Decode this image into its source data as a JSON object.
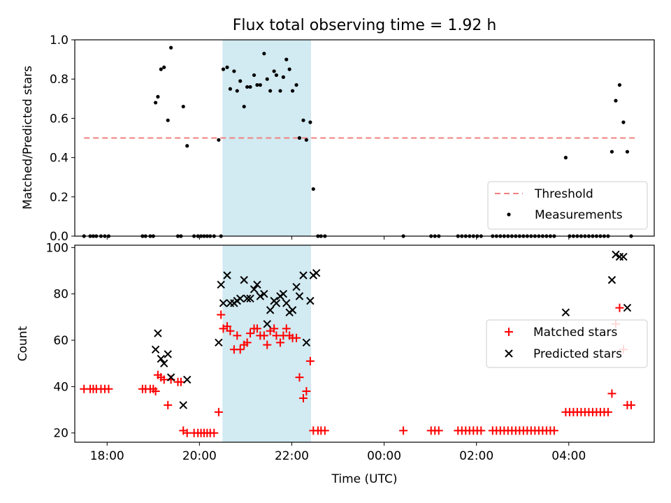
{
  "chart_data": [
    {
      "type": "scatter",
      "title": "Flux total observing time = 1.92 h",
      "xlabel": "",
      "ylabel": "Matched/Predicted stars",
      "xlim": [
        "17:18",
        "05:51"
      ],
      "ylim": [
        0,
        1.0
      ],
      "yticks": [
        "0.0",
        "0.2",
        "0.4",
        "0.6",
        "0.8",
        "1.0"
      ],
      "xticks_shown": false,
      "highlight_span": {
        "start": "20:30",
        "end": "22:25",
        "color": "#add8e6"
      },
      "threshold": {
        "name": "Threshold",
        "value": 0.5,
        "x_start": "17:30",
        "x_end": "05:30",
        "color": "#f08080",
        "style": "dashed"
      },
      "legend": {
        "position": "lower-right",
        "entries": [
          "Threshold",
          "Measurements"
        ]
      },
      "series": [
        {
          "name": "Measurements",
          "color": "#000000",
          "marker": "dot",
          "points": [
            [
              "17:30",
              0
            ],
            [
              "17:38",
              0
            ],
            [
              "17:42",
              0
            ],
            [
              "17:46",
              0
            ],
            [
              "17:52",
              0
            ],
            [
              "17:57",
              0
            ],
            [
              "18:02",
              0
            ],
            [
              "18:46",
              0
            ],
            [
              "18:50",
              0
            ],
            [
              "18:56",
              0
            ],
            [
              "19:00",
              0
            ],
            [
              "19:03",
              0.68
            ],
            [
              "19:06",
              0.71
            ],
            [
              "19:10",
              0.85
            ],
            [
              "19:14",
              0.86
            ],
            [
              "19:19",
              0.59
            ],
            [
              "19:23",
              0.96
            ],
            [
              "19:32",
              0
            ],
            [
              "19:36",
              0
            ],
            [
              "19:39",
              0.66
            ],
            [
              "19:44",
              0.46
            ],
            [
              "19:53",
              0
            ],
            [
              "19:58",
              0
            ],
            [
              "20:02",
              0
            ],
            [
              "20:06",
              0
            ],
            [
              "20:10",
              0
            ],
            [
              "20:14",
              0
            ],
            [
              "20:19",
              0
            ],
            [
              "20:25",
              0.49
            ],
            [
              "20:28",
              0
            ],
            [
              "20:31",
              0.85
            ],
            [
              "20:36",
              0.86
            ],
            [
              "20:40",
              0.75
            ],
            [
              "20:45",
              0.84
            ],
            [
              "20:49",
              0.74
            ],
            [
              "20:53",
              0.79
            ],
            [
              "20:58",
              0.66
            ],
            [
              "21:02",
              0.76
            ],
            [
              "21:06",
              0.76
            ],
            [
              "21:11",
              0.82
            ],
            [
              "21:15",
              0.77
            ],
            [
              "21:19",
              0.77
            ],
            [
              "21:24",
              0.93
            ],
            [
              "21:28",
              0.8
            ],
            [
              "21:32",
              0.74
            ],
            [
              "21:37",
              0.84
            ],
            [
              "21:40",
              0.82
            ],
            [
              "21:45",
              0.74
            ],
            [
              "21:49",
              0.81
            ],
            [
              "21:53",
              0.9
            ],
            [
              "21:57",
              0.85
            ],
            [
              "22:01",
              0.74
            ],
            [
              "22:06",
              0.77
            ],
            [
              "22:10",
              0.5
            ],
            [
              "22:15",
              0.59
            ],
            [
              "22:19",
              0.49
            ],
            [
              "22:24",
              0.58
            ],
            [
              "22:28",
              0.24
            ],
            [
              "22:34",
              0
            ],
            [
              "22:38",
              0
            ],
            [
              "22:43",
              0
            ],
            [
              "00:25",
              0
            ],
            [
              "01:01",
              0
            ],
            [
              "01:06",
              0
            ],
            [
              "01:11",
              0
            ],
            [
              "01:36",
              0
            ],
            [
              "01:41",
              0
            ],
            [
              "01:46",
              0
            ],
            [
              "01:51",
              0
            ],
            [
              "01:56",
              0
            ],
            [
              "02:01",
              0
            ],
            [
              "02:06",
              0
            ],
            [
              "02:21",
              0
            ],
            [
              "02:26",
              0
            ],
            [
              "02:31",
              0
            ],
            [
              "02:36",
              0
            ],
            [
              "02:41",
              0
            ],
            [
              "02:46",
              0
            ],
            [
              "02:51",
              0
            ],
            [
              "02:56",
              0
            ],
            [
              "03:01",
              0
            ],
            [
              "03:06",
              0
            ],
            [
              "03:11",
              0
            ],
            [
              "03:16",
              0
            ],
            [
              "03:21",
              0
            ],
            [
              "03:26",
              0
            ],
            [
              "03:31",
              0
            ],
            [
              "03:36",
              0
            ],
            [
              "03:41",
              0
            ],
            [
              "03:56",
              0.4
            ],
            [
              "04:01",
              0
            ],
            [
              "04:06",
              0
            ],
            [
              "04:11",
              0
            ],
            [
              "04:16",
              0
            ],
            [
              "04:21",
              0
            ],
            [
              "04:26",
              0
            ],
            [
              "04:31",
              0
            ],
            [
              "04:36",
              0
            ],
            [
              "04:41",
              0
            ],
            [
              "04:46",
              0
            ],
            [
              "04:51",
              0
            ],
            [
              "04:56",
              0.43
            ],
            [
              "05:01",
              0.69
            ],
            [
              "05:06",
              0.77
            ],
            [
              "05:11",
              0.58
            ],
            [
              "05:16",
              0.43
            ],
            [
              "05:21",
              0
            ]
          ]
        }
      ]
    },
    {
      "type": "scatter",
      "title": "",
      "xlabel": "Time (UTC)",
      "ylabel": "Count",
      "xlim": [
        "17:18",
        "05:51"
      ],
      "ylim": [
        16,
        101
      ],
      "yticks": [
        "20",
        "40",
        "60",
        "80",
        "100"
      ],
      "xticks": [
        "18:00",
        "20:00",
        "22:00",
        "00:00",
        "02:00",
        "04:00"
      ],
      "highlight_span": {
        "start": "20:30",
        "end": "22:25",
        "color": "#add8e6"
      },
      "legend": {
        "position": "center-right",
        "entries": [
          "Matched stars",
          "Predicted stars"
        ]
      },
      "series": [
        {
          "name": "Matched stars",
          "color": "#ff0000",
          "marker": "plus",
          "points": [
            [
              "17:30",
              39
            ],
            [
              "17:38",
              39
            ],
            [
              "17:42",
              39
            ],
            [
              "17:46",
              39
            ],
            [
              "17:52",
              39
            ],
            [
              "17:57",
              39
            ],
            [
              "18:02",
              39
            ],
            [
              "18:46",
              39
            ],
            [
              "18:50",
              39
            ],
            [
              "18:56",
              39
            ],
            [
              "19:00",
              39
            ],
            [
              "19:03",
              38
            ],
            [
              "19:06",
              45
            ],
            [
              "19:10",
              44
            ],
            [
              "19:14",
              43
            ],
            [
              "19:19",
              32
            ],
            [
              "19:23",
              43
            ],
            [
              "19:32",
              42
            ],
            [
              "19:36",
              42
            ],
            [
              "19:39",
              21
            ],
            [
              "19:44",
              20
            ],
            [
              "19:53",
              20
            ],
            [
              "19:58",
              20
            ],
            [
              "20:02",
              20
            ],
            [
              "20:06",
              20
            ],
            [
              "20:10",
              20
            ],
            [
              "20:14",
              20
            ],
            [
              "20:19",
              20
            ],
            [
              "20:25",
              29
            ],
            [
              "20:28",
              71
            ],
            [
              "20:31",
              65
            ],
            [
              "20:36",
              66
            ],
            [
              "20:40",
              64
            ],
            [
              "20:45",
              56
            ],
            [
              "20:49",
              62
            ],
            [
              "20:53",
              56
            ],
            [
              "20:58",
              58
            ],
            [
              "21:02",
              59
            ],
            [
              "21:06",
              63
            ],
            [
              "21:11",
              65
            ],
            [
              "21:15",
              65
            ],
            [
              "21:19",
              62
            ],
            [
              "21:24",
              62
            ],
            [
              "21:28",
              58
            ],
            [
              "21:32",
              64
            ],
            [
              "21:37",
              65
            ],
            [
              "21:40",
              62
            ],
            [
              "21:45",
              59
            ],
            [
              "21:49",
              62
            ],
            [
              "21:53",
              65
            ],
            [
              "21:57",
              62
            ],
            [
              "22:01",
              61
            ],
            [
              "22:06",
              61
            ],
            [
              "22:10",
              44
            ],
            [
              "22:15",
              35
            ],
            [
              "22:19",
              38
            ],
            [
              "22:24",
              51
            ],
            [
              "22:28",
              21
            ],
            [
              "22:34",
              21
            ],
            [
              "22:38",
              21
            ],
            [
              "22:43",
              21
            ],
            [
              "00:25",
              21
            ],
            [
              "01:01",
              21
            ],
            [
              "01:06",
              21
            ],
            [
              "01:11",
              21
            ],
            [
              "01:36",
              21
            ],
            [
              "01:41",
              21
            ],
            [
              "01:46",
              21
            ],
            [
              "01:51",
              21
            ],
            [
              "01:56",
              21
            ],
            [
              "02:01",
              21
            ],
            [
              "02:06",
              21
            ],
            [
              "02:21",
              21
            ],
            [
              "02:26",
              21
            ],
            [
              "02:31",
              21
            ],
            [
              "02:36",
              21
            ],
            [
              "02:41",
              21
            ],
            [
              "02:46",
              21
            ],
            [
              "02:51",
              21
            ],
            [
              "02:56",
              21
            ],
            [
              "03:01",
              21
            ],
            [
              "03:06",
              21
            ],
            [
              "03:11",
              21
            ],
            [
              "03:16",
              21
            ],
            [
              "03:21",
              21
            ],
            [
              "03:26",
              21
            ],
            [
              "03:31",
              21
            ],
            [
              "03:36",
              21
            ],
            [
              "03:41",
              21
            ],
            [
              "03:56",
              29
            ],
            [
              "04:01",
              29
            ],
            [
              "04:06",
              29
            ],
            [
              "04:11",
              29
            ],
            [
              "04:16",
              29
            ],
            [
              "04:21",
              29
            ],
            [
              "04:26",
              29
            ],
            [
              "04:31",
              29
            ],
            [
              "04:36",
              29
            ],
            [
              "04:41",
              29
            ],
            [
              "04:46",
              29
            ],
            [
              "04:51",
              29
            ],
            [
              "04:56",
              37
            ],
            [
              "05:01",
              67
            ],
            [
              "05:06",
              74
            ],
            [
              "05:11",
              56
            ],
            [
              "05:16",
              32
            ],
            [
              "05:21",
              32
            ]
          ]
        },
        {
          "name": "Predicted stars",
          "color": "#000000",
          "marker": "x",
          "points": [
            [
              "19:03",
              56
            ],
            [
              "19:06",
              63
            ],
            [
              "19:10",
              52
            ],
            [
              "19:14",
              50
            ],
            [
              "19:19",
              54
            ],
            [
              "19:23",
              44
            ],
            [
              "19:39",
              32
            ],
            [
              "19:44",
              43
            ],
            [
              "20:25",
              59
            ],
            [
              "20:28",
              84
            ],
            [
              "20:31",
              76
            ],
            [
              "20:36",
              88
            ],
            [
              "20:40",
              76
            ],
            [
              "20:45",
              76
            ],
            [
              "20:49",
              77
            ],
            [
              "20:53",
              78
            ],
            [
              "20:58",
              86
            ],
            [
              "21:02",
              78
            ],
            [
              "21:06",
              78
            ],
            [
              "21:11",
              82
            ],
            [
              "21:15",
              84
            ],
            [
              "21:19",
              79
            ],
            [
              "21:24",
              80
            ],
            [
              "21:28",
              67
            ],
            [
              "21:32",
              73
            ],
            [
              "21:37",
              77
            ],
            [
              "21:40",
              76
            ],
            [
              "21:45",
              79
            ],
            [
              "21:49",
              80
            ],
            [
              "21:53",
              76
            ],
            [
              "21:57",
              72
            ],
            [
              "22:01",
              73
            ],
            [
              "22:06",
              83
            ],
            [
              "22:10",
              79
            ],
            [
              "22:15",
              88
            ],
            [
              "22:19",
              59
            ],
            [
              "22:24",
              77
            ],
            [
              "22:28",
              88
            ],
            [
              "22:32",
              89
            ],
            [
              "03:56",
              72
            ],
            [
              "04:56",
              86
            ],
            [
              "05:01",
              97
            ],
            [
              "05:06",
              96
            ],
            [
              "05:11",
              96
            ],
            [
              "05:16",
              74
            ]
          ]
        }
      ]
    }
  ]
}
